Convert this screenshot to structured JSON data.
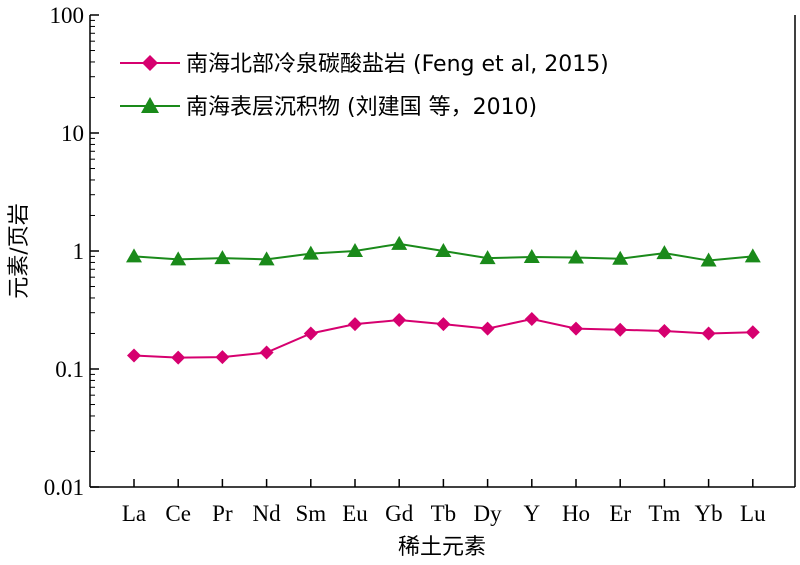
{
  "chart_data": {
    "type": "line",
    "categories": [
      "La",
      "Ce",
      "Pr",
      "Nd",
      "Sm",
      "Eu",
      "Gd",
      "Tb",
      "Dy",
      "Y",
      "Ho",
      "Er",
      "Tm",
      "Yb",
      "Lu"
    ],
    "yscale": "log",
    "ylim": [
      0.01,
      100
    ],
    "yticks": [
      "0.01",
      "0.1",
      "1",
      "10",
      "100"
    ],
    "xlabel": "稀土元素",
    "ylabel": "元素/页岩",
    "grid": false,
    "legend_position": "top-left",
    "series": [
      {
        "name": "南海北部冷泉碳酸盐岩 (Feng et al, 2015)",
        "color": "#d6006f",
        "marker": "diamond",
        "values": [
          0.13,
          0.125,
          0.126,
          0.138,
          0.2,
          0.24,
          0.26,
          0.24,
          0.22,
          0.265,
          0.22,
          0.215,
          0.21,
          0.2,
          0.205
        ]
      },
      {
        "name": "南海表层沉积物 (刘建国 等，2010)",
        "color": "#1a8a1a",
        "marker": "triangle",
        "values": [
          0.9,
          0.85,
          0.87,
          0.85,
          0.95,
          1.0,
          1.15,
          1.0,
          0.87,
          0.89,
          0.88,
          0.86,
          0.96,
          0.83,
          0.9
        ]
      }
    ]
  }
}
